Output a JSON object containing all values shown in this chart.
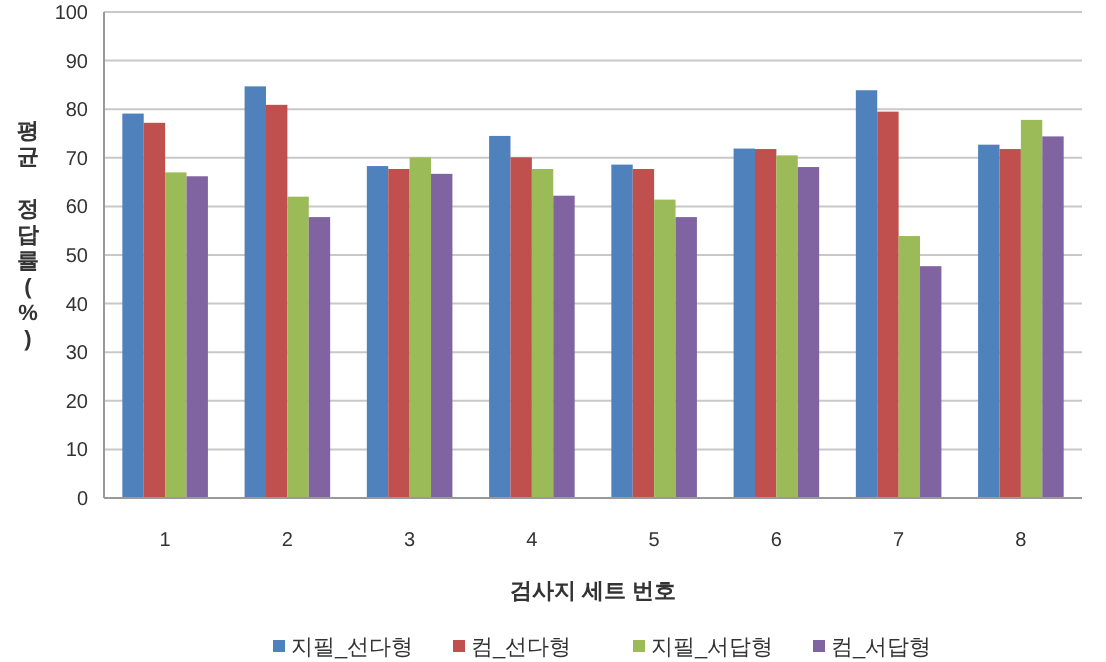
{
  "chart_data": {
    "type": "bar",
    "xlabel": "검사지 세트 번호",
    "ylabel": "평균 정답률(%)",
    "categories": [
      "1",
      "2",
      "3",
      "4",
      "5",
      "6",
      "7",
      "8"
    ],
    "series": [
      {
        "name": "지필_선다형",
        "color": "#4f81bd",
        "values": [
          79.1,
          84.7,
          68.3,
          74.5,
          68.6,
          71.9,
          83.9,
          72.7
        ]
      },
      {
        "name": "컴_선다형",
        "color": "#c0504d",
        "values": [
          77.2,
          80.9,
          67.7,
          70.1,
          67.7,
          71.8,
          79.5,
          71.8
        ]
      },
      {
        "name": "지필_서답형",
        "color": "#9bbb59",
        "values": [
          67,
          62,
          70.1,
          67.7,
          61.4,
          70.5,
          53.9,
          77.8
        ]
      },
      {
        "name": "컴_서답형",
        "color": "#8064a2",
        "values": [
          66.2,
          57.8,
          66.7,
          62.2,
          57.8,
          68.1,
          47.7,
          74.4
        ]
      }
    ],
    "ylim": [
      0,
      100
    ],
    "yticks": [
      0,
      10,
      20,
      30,
      40,
      50,
      60,
      70,
      80,
      90,
      100
    ],
    "grid": "y",
    "legend": "bottom"
  }
}
